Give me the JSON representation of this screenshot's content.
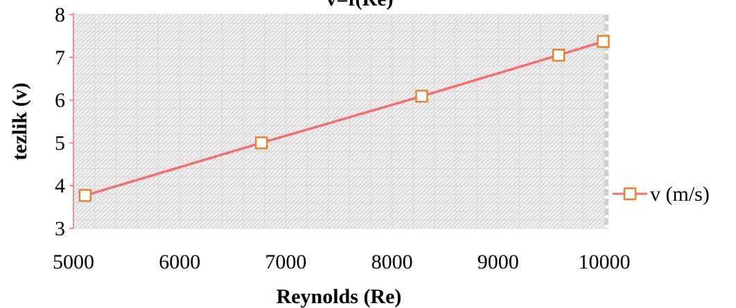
{
  "chart_data": {
    "type": "line",
    "title": "v=f(Re)",
    "xlabel": "Reynolds (Re)",
    "ylabel": "tezlik (v)",
    "xlim": [
      5000,
      10000
    ],
    "ylim": [
      3,
      8
    ],
    "x_ticks": [
      5000,
      6000,
      7000,
      8000,
      9000,
      10000
    ],
    "y_ticks": [
      3,
      4,
      5,
      6,
      7,
      8
    ],
    "grid": true,
    "legend_position": "right",
    "series": [
      {
        "name": "v (m/s)",
        "color": "#f07070",
        "marker_color": "#e8822c",
        "marker": "square",
        "x": [
          5110,
          6770,
          8280,
          9570,
          9990
        ],
        "y": [
          3.77,
          5.0,
          6.09,
          7.05,
          7.37
        ]
      }
    ]
  }
}
